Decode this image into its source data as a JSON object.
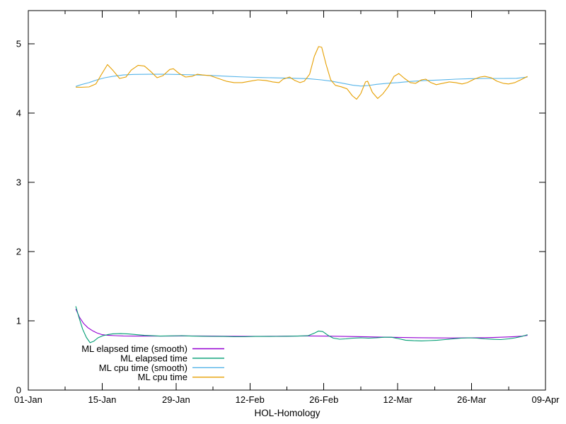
{
  "figure": {
    "background_color": "#ffffff",
    "text_color": "#000000",
    "border_color": "#000000"
  },
  "chart_data": {
    "type": "line",
    "title": "",
    "xlabel": "HOL-Homology",
    "ylabel": "",
    "grid": false,
    "legend_position": "inside-bottom-left",
    "x_axis": {
      "unit": "date",
      "range_days": [
        0,
        98
      ],
      "major_ticks": [
        {
          "day": 0,
          "label": "01-Jan"
        },
        {
          "day": 14,
          "label": "15-Jan"
        },
        {
          "day": 28,
          "label": "29-Jan"
        },
        {
          "day": 42,
          "label": "12-Feb"
        },
        {
          "day": 56,
          "label": "26-Feb"
        },
        {
          "day": 70,
          "label": "12-Mar"
        },
        {
          "day": 84,
          "label": "26-Mar"
        },
        {
          "day": 98,
          "label": "09-Apr"
        }
      ],
      "minor_tick_days": [
        7,
        21,
        35,
        49,
        63,
        77,
        91
      ]
    },
    "y_axis": {
      "range": [
        0,
        5.48
      ],
      "ticks": [
        {
          "value": 0,
          "label": "0"
        },
        {
          "value": 1,
          "label": "1"
        },
        {
          "value": 2,
          "label": "2"
        },
        {
          "value": 3,
          "label": "3"
        },
        {
          "value": 4,
          "label": "4"
        },
        {
          "value": 5,
          "label": "5"
        }
      ]
    },
    "series": [
      {
        "name": "ML elapsed time (smooth)",
        "slug": "ml-elapsed-time-smooth",
        "color": "#9400d3",
        "points": [
          [
            9.0,
            1.17
          ],
          [
            9.7,
            1.05
          ],
          [
            10.5,
            0.96
          ],
          [
            11.3,
            0.9
          ],
          [
            12.1,
            0.86
          ],
          [
            13.0,
            0.825
          ],
          [
            14.0,
            0.8
          ],
          [
            15.0,
            0.792
          ],
          [
            16.5,
            0.786
          ],
          [
            18.0,
            0.782
          ],
          [
            20.0,
            0.78
          ],
          [
            23.0,
            0.78
          ],
          [
            26.0,
            0.78
          ],
          [
            29.0,
            0.782
          ],
          [
            32.0,
            0.782
          ],
          [
            35.0,
            0.78
          ],
          [
            38.0,
            0.778
          ],
          [
            41.0,
            0.777
          ],
          [
            44.0,
            0.777
          ],
          [
            47.0,
            0.778
          ],
          [
            50.0,
            0.78
          ],
          [
            53.0,
            0.782
          ],
          [
            56.0,
            0.78
          ],
          [
            58.0,
            0.778
          ],
          [
            60.0,
            0.775
          ],
          [
            62.0,
            0.772
          ],
          [
            64.0,
            0.769
          ],
          [
            66.0,
            0.766
          ],
          [
            68.0,
            0.763
          ],
          [
            70.0,
            0.761
          ],
          [
            72.0,
            0.758
          ],
          [
            74.0,
            0.756
          ],
          [
            76.0,
            0.754
          ],
          [
            78.0,
            0.753
          ],
          [
            80.0,
            0.752
          ],
          [
            82.0,
            0.753
          ],
          [
            84.0,
            0.754
          ],
          [
            86.0,
            0.756
          ],
          [
            88.0,
            0.759
          ],
          [
            90.0,
            0.764
          ],
          [
            92.0,
            0.771
          ],
          [
            93.5,
            0.779
          ],
          [
            94.6,
            0.79
          ]
        ]
      },
      {
        "name": "ML elapsed time",
        "slug": "ml-elapsed-time",
        "color": "#009e73",
        "points": [
          [
            9.0,
            1.21
          ],
          [
            9.6,
            1.05
          ],
          [
            10.3,
            0.88
          ],
          [
            11.0,
            0.76
          ],
          [
            11.7,
            0.685
          ],
          [
            12.4,
            0.705
          ],
          [
            13.2,
            0.755
          ],
          [
            14.1,
            0.785
          ],
          [
            15.0,
            0.8
          ],
          [
            16.0,
            0.812
          ],
          [
            17.5,
            0.815
          ],
          [
            19.0,
            0.81
          ],
          [
            20.5,
            0.8
          ],
          [
            22.0,
            0.79
          ],
          [
            23.5,
            0.785
          ],
          [
            25.0,
            0.78
          ],
          [
            27.0,
            0.783
          ],
          [
            29.0,
            0.785
          ],
          [
            31.0,
            0.78
          ],
          [
            33.0,
            0.778
          ],
          [
            35.0,
            0.776
          ],
          [
            37.0,
            0.774
          ],
          [
            39.0,
            0.77
          ],
          [
            41.0,
            0.77
          ],
          [
            43.0,
            0.774
          ],
          [
            45.0,
            0.775
          ],
          [
            47.0,
            0.776
          ],
          [
            49.0,
            0.778
          ],
          [
            51.0,
            0.78
          ],
          [
            53.0,
            0.785
          ],
          [
            54.3,
            0.825
          ],
          [
            55.0,
            0.853
          ],
          [
            55.8,
            0.845
          ],
          [
            56.8,
            0.79
          ],
          [
            57.8,
            0.75
          ],
          [
            59.0,
            0.735
          ],
          [
            60.2,
            0.74
          ],
          [
            61.5,
            0.75
          ],
          [
            63.0,
            0.755
          ],
          [
            64.5,
            0.75
          ],
          [
            66.0,
            0.755
          ],
          [
            67.5,
            0.763
          ],
          [
            68.8,
            0.763
          ],
          [
            70.0,
            0.745
          ],
          [
            71.5,
            0.72
          ],
          [
            73.0,
            0.713
          ],
          [
            74.5,
            0.71
          ],
          [
            76.0,
            0.714
          ],
          [
            77.5,
            0.72
          ],
          [
            79.0,
            0.73
          ],
          [
            80.5,
            0.74
          ],
          [
            82.0,
            0.75
          ],
          [
            83.5,
            0.755
          ],
          [
            85.0,
            0.75
          ],
          [
            86.5,
            0.74
          ],
          [
            88.0,
            0.734
          ],
          [
            89.5,
            0.73
          ],
          [
            91.0,
            0.74
          ],
          [
            92.3,
            0.755
          ],
          [
            93.5,
            0.775
          ],
          [
            94.6,
            0.8
          ]
        ]
      },
      {
        "name": "ML cpu time (smooth)",
        "slug": "ml-cpu-time-smooth",
        "color": "#56b4e9",
        "points": [
          [
            9.0,
            4.385
          ],
          [
            10.0,
            4.41
          ],
          [
            11.5,
            4.44
          ],
          [
            13.0,
            4.48
          ],
          [
            14.5,
            4.51
          ],
          [
            16.0,
            4.53
          ],
          [
            18.0,
            4.55
          ],
          [
            20.0,
            4.558
          ],
          [
            23.0,
            4.56
          ],
          [
            26.0,
            4.56
          ],
          [
            29.0,
            4.556
          ],
          [
            32.0,
            4.55
          ],
          [
            35.0,
            4.542
          ],
          [
            38.0,
            4.53
          ],
          [
            41.0,
            4.52
          ],
          [
            44.0,
            4.513
          ],
          [
            47.0,
            4.508
          ],
          [
            50.0,
            4.503
          ],
          [
            53.0,
            4.497
          ],
          [
            55.5,
            4.48
          ],
          [
            57.5,
            4.46
          ],
          [
            59.5,
            4.432
          ],
          [
            61.5,
            4.402
          ],
          [
            63.0,
            4.39
          ],
          [
            64.5,
            4.398
          ],
          [
            66.0,
            4.415
          ],
          [
            68.0,
            4.43
          ],
          [
            70.0,
            4.44
          ],
          [
            72.5,
            4.457
          ],
          [
            75.0,
            4.468
          ],
          [
            78.0,
            4.478
          ],
          [
            81.0,
            4.49
          ],
          [
            84.0,
            4.497
          ],
          [
            87.0,
            4.5
          ],
          [
            90.0,
            4.5
          ],
          [
            92.5,
            4.502
          ],
          [
            94.6,
            4.52
          ]
        ]
      },
      {
        "name": "ML cpu time",
        "slug": "ml-cpu-time",
        "color": "#e69f00",
        "points": [
          [
            9.0,
            4.375
          ],
          [
            10.0,
            4.372
          ],
          [
            11.5,
            4.378
          ],
          [
            12.8,
            4.42
          ],
          [
            13.8,
            4.55
          ],
          [
            15.0,
            4.7
          ],
          [
            16.0,
            4.62
          ],
          [
            17.3,
            4.5
          ],
          [
            18.5,
            4.52
          ],
          [
            19.5,
            4.62
          ],
          [
            20.8,
            4.69
          ],
          [
            22.0,
            4.68
          ],
          [
            23.2,
            4.6
          ],
          [
            24.4,
            4.51
          ],
          [
            25.5,
            4.54
          ],
          [
            26.8,
            4.63
          ],
          [
            27.5,
            4.64
          ],
          [
            28.6,
            4.57
          ],
          [
            29.8,
            4.52
          ],
          [
            31.0,
            4.53
          ],
          [
            32.0,
            4.56
          ],
          [
            33.0,
            4.55
          ],
          [
            34.5,
            4.54
          ],
          [
            36.0,
            4.5
          ],
          [
            37.5,
            4.46
          ],
          [
            39.0,
            4.44
          ],
          [
            40.5,
            4.44
          ],
          [
            42.0,
            4.46
          ],
          [
            43.5,
            4.48
          ],
          [
            45.0,
            4.47
          ],
          [
            46.3,
            4.45
          ],
          [
            47.5,
            4.44
          ],
          [
            48.3,
            4.49
          ],
          [
            49.5,
            4.52
          ],
          [
            50.5,
            4.47
          ],
          [
            51.5,
            4.44
          ],
          [
            52.3,
            4.46
          ],
          [
            53.3,
            4.56
          ],
          [
            54.2,
            4.82
          ],
          [
            55.0,
            4.96
          ],
          [
            55.6,
            4.95
          ],
          [
            56.4,
            4.71
          ],
          [
            57.3,
            4.48
          ],
          [
            58.2,
            4.4
          ],
          [
            59.3,
            4.38
          ],
          [
            60.4,
            4.35
          ],
          [
            61.4,
            4.25
          ],
          [
            62.2,
            4.2
          ],
          [
            63.0,
            4.28
          ],
          [
            63.9,
            4.45
          ],
          [
            64.3,
            4.46
          ],
          [
            65.2,
            4.3
          ],
          [
            66.2,
            4.21
          ],
          [
            67.2,
            4.28
          ],
          [
            68.2,
            4.38
          ],
          [
            69.3,
            4.53
          ],
          [
            70.2,
            4.57
          ],
          [
            71.3,
            4.5
          ],
          [
            72.4,
            4.44
          ],
          [
            73.4,
            4.43
          ],
          [
            74.5,
            4.48
          ],
          [
            75.3,
            4.49
          ],
          [
            76.3,
            4.44
          ],
          [
            77.3,
            4.41
          ],
          [
            78.5,
            4.43
          ],
          [
            79.8,
            4.45
          ],
          [
            81.0,
            4.44
          ],
          [
            82.2,
            4.42
          ],
          [
            83.2,
            4.44
          ],
          [
            84.5,
            4.49
          ],
          [
            85.6,
            4.52
          ],
          [
            86.5,
            4.53
          ],
          [
            87.7,
            4.51
          ],
          [
            88.8,
            4.46
          ],
          [
            90.0,
            4.43
          ],
          [
            91.0,
            4.42
          ],
          [
            92.2,
            4.44
          ],
          [
            93.3,
            4.48
          ],
          [
            94.6,
            4.53
          ]
        ]
      }
    ],
    "legend_entries": [
      "ML elapsed time (smooth)",
      "ML elapsed time",
      "ML cpu time (smooth)",
      "ML cpu time"
    ]
  }
}
